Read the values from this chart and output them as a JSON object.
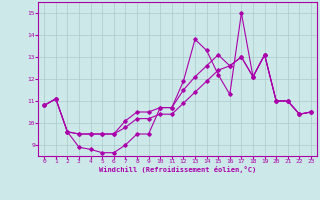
{
  "xlabel": "Windchill (Refroidissement éolien,°C)",
  "xlim": [
    -0.5,
    23.5
  ],
  "ylim": [
    8.5,
    15.5
  ],
  "yticks": [
    9,
    10,
    11,
    12,
    13,
    14,
    15
  ],
  "xticks": [
    0,
    1,
    2,
    3,
    4,
    5,
    6,
    7,
    8,
    9,
    10,
    11,
    12,
    13,
    14,
    15,
    16,
    17,
    18,
    19,
    20,
    21,
    22,
    23
  ],
  "bg_color": "#cce8e8",
  "grid_color": "#aacccc",
  "line_color": "#aa00aa",
  "series1": [
    10.8,
    11.1,
    9.6,
    8.9,
    8.8,
    8.65,
    8.65,
    9.0,
    9.5,
    9.5,
    10.7,
    10.7,
    11.9,
    13.8,
    13.3,
    12.2,
    11.3,
    15.0,
    12.1,
    13.1,
    11.0,
    11.0,
    10.4,
    10.5
  ],
  "series2": [
    10.8,
    11.1,
    9.6,
    9.5,
    9.5,
    9.5,
    9.5,
    10.1,
    10.5,
    10.5,
    10.7,
    10.7,
    11.5,
    12.1,
    12.6,
    13.1,
    12.6,
    13.0,
    12.1,
    13.1,
    11.0,
    11.0,
    10.4,
    10.5
  ],
  "series3": [
    10.8,
    11.1,
    9.6,
    9.5,
    9.5,
    9.5,
    9.5,
    9.8,
    10.2,
    10.2,
    10.4,
    10.4,
    10.9,
    11.4,
    11.9,
    12.4,
    12.6,
    13.0,
    12.1,
    13.1,
    11.0,
    11.0,
    10.4,
    10.5
  ]
}
